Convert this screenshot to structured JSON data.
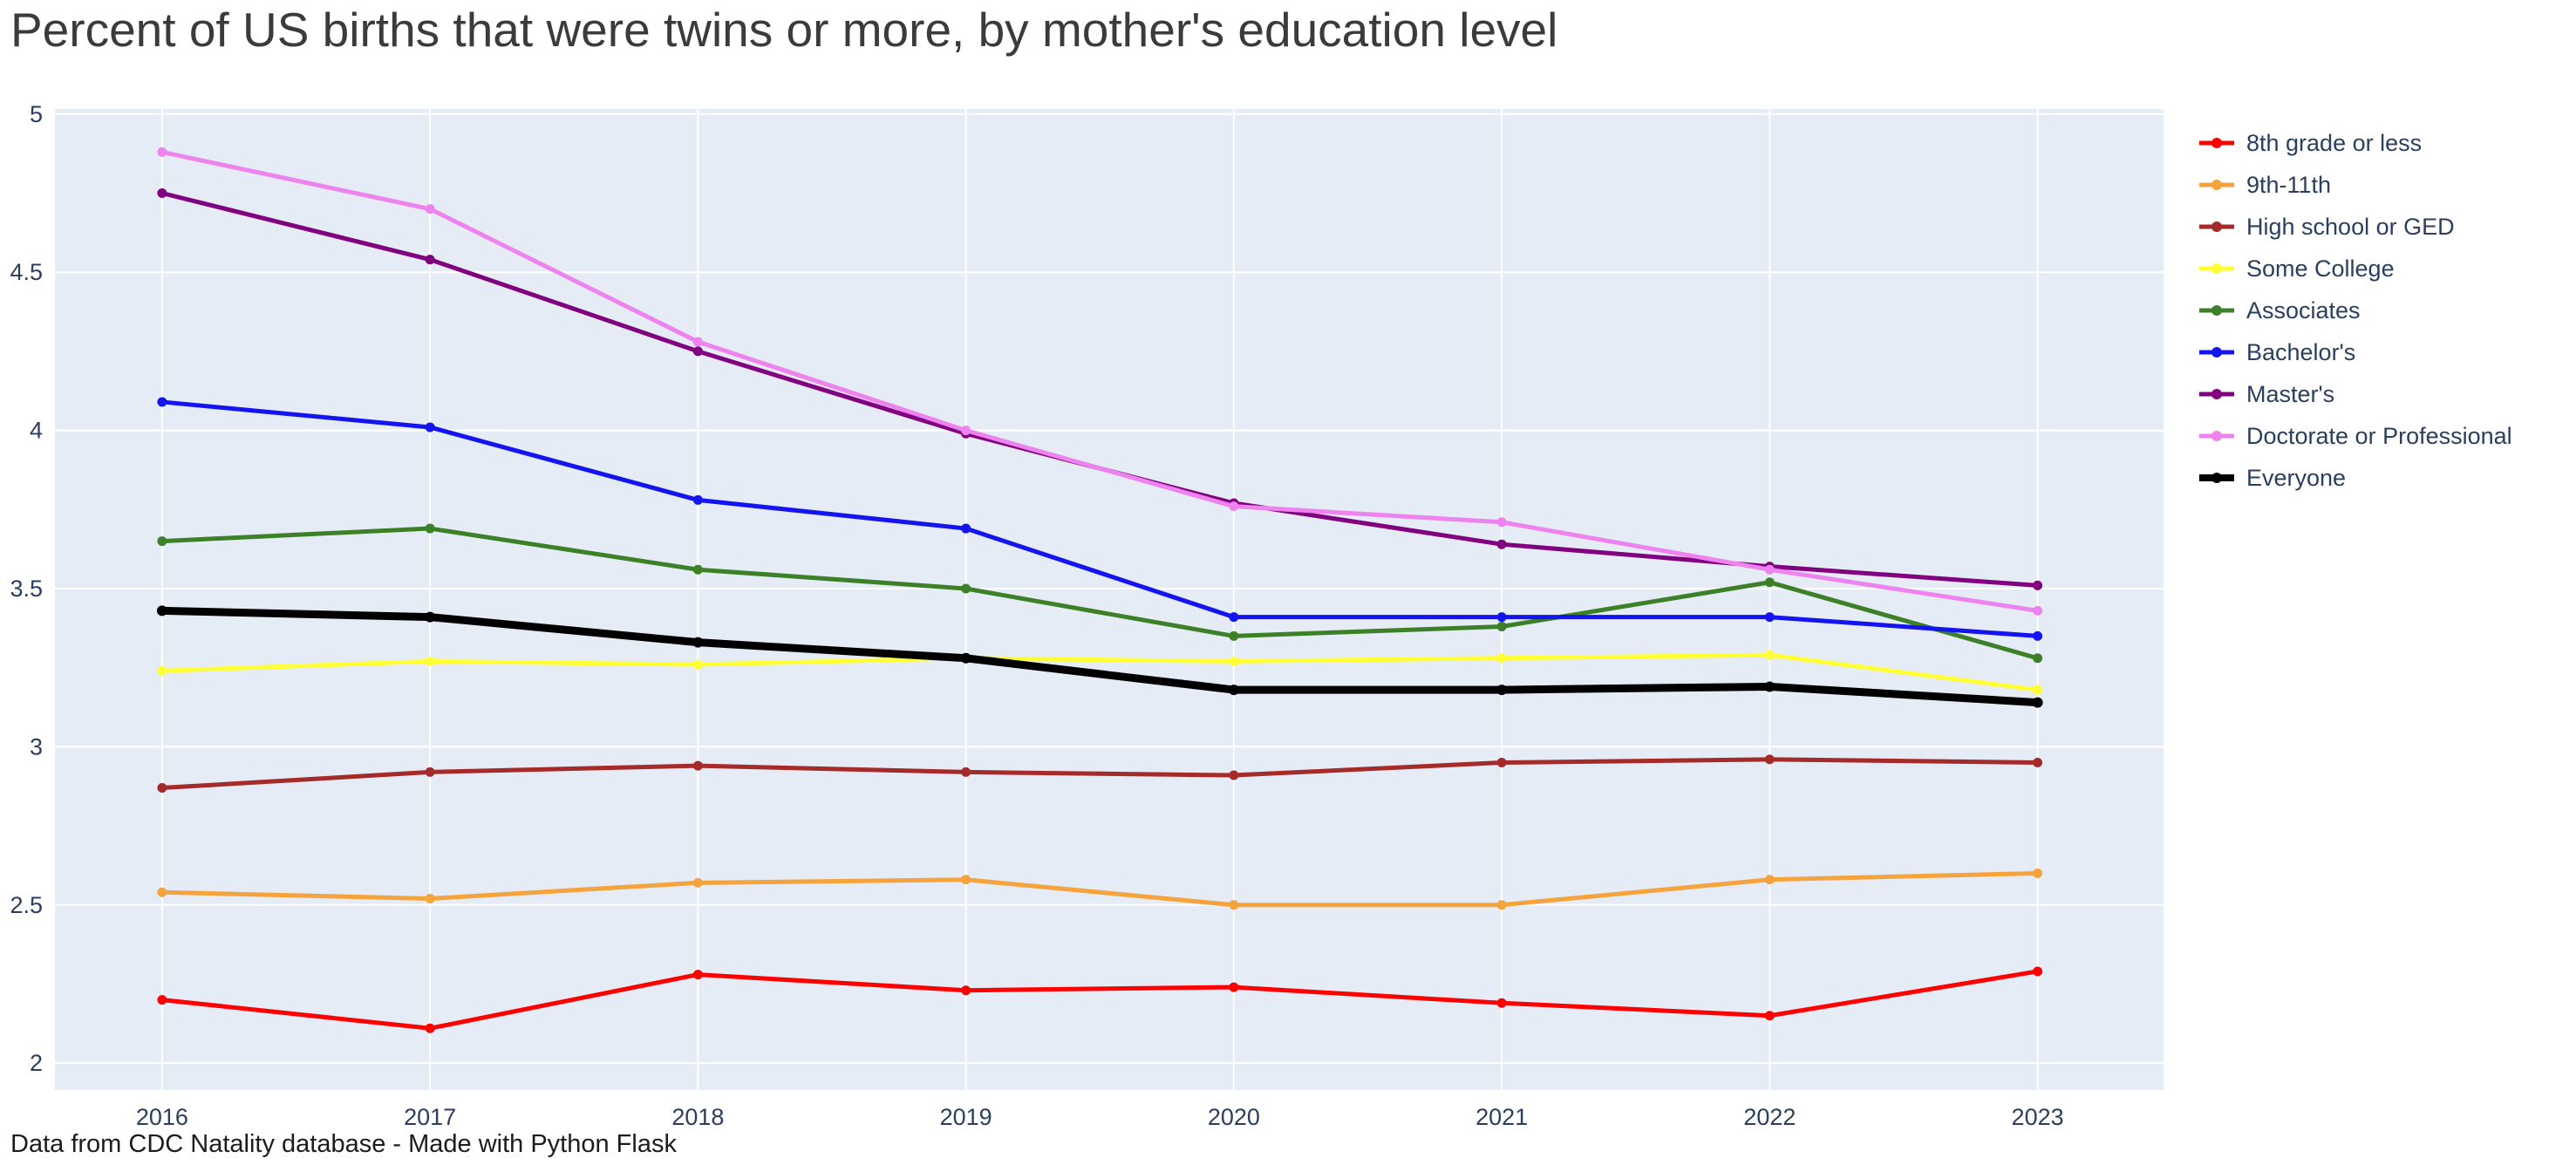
{
  "page": {
    "title": "Percent of US births that were twins or more, by mother's education level",
    "caption": "Data from CDC Natality database - Made with Python Flask"
  },
  "chart_data": {
    "type": "line",
    "title": "Percent of US births that were twins or more, by mother's education level",
    "xlabel": "",
    "ylabel": "",
    "x": [
      2016,
      2017,
      2018,
      2019,
      2020,
      2021,
      2022,
      2023
    ],
    "yticks": [
      2,
      2.5,
      3,
      3.5,
      4,
      4.5,
      5
    ],
    "ylim": [
      1.9,
      5.02
    ],
    "grid": true,
    "legend_position": "right",
    "plot_bg": "#e5ecf6",
    "grid_color": "#ffffff",
    "tick_color": "#2a3f5f",
    "series": [
      {
        "name": "8th grade or less",
        "color": "#ff0000",
        "width": 5,
        "values": [
          2.2,
          2.11,
          2.28,
          2.23,
          2.24,
          2.19,
          2.15,
          2.29
        ]
      },
      {
        "name": "9th-11th",
        "color": "#f5a33c",
        "width": 5,
        "values": [
          2.54,
          2.52,
          2.57,
          2.58,
          2.5,
          2.5,
          2.58,
          2.6
        ]
      },
      {
        "name": "High school or GED",
        "color": "#a52a2a",
        "width": 5,
        "values": [
          2.87,
          2.92,
          2.94,
          2.92,
          2.91,
          2.95,
          2.96,
          2.95
        ]
      },
      {
        "name": "Some College",
        "color": "#ffff33",
        "width": 5,
        "values": [
          3.24,
          3.27,
          3.26,
          3.28,
          3.27,
          3.28,
          3.29,
          3.18
        ]
      },
      {
        "name": "Associates",
        "color": "#3c8028",
        "width": 5,
        "values": [
          3.65,
          3.69,
          3.56,
          3.5,
          3.35,
          3.38,
          3.52,
          3.28
        ]
      },
      {
        "name": "Bachelor's",
        "color": "#1414f0",
        "width": 5,
        "values": [
          4.09,
          4.01,
          3.78,
          3.69,
          3.41,
          3.41,
          3.41,
          3.35
        ]
      },
      {
        "name": "Master's",
        "color": "#800080",
        "width": 5,
        "values": [
          4.75,
          4.54,
          4.25,
          3.99,
          3.77,
          3.64,
          3.57,
          3.51
        ]
      },
      {
        "name": "Doctorate or Professional",
        "color": "#ee82ee",
        "width": 5,
        "values": [
          4.88,
          4.7,
          4.28,
          4.0,
          3.76,
          3.71,
          3.56,
          3.43
        ]
      },
      {
        "name": "Everyone",
        "color": "#000000",
        "width": 9,
        "values": [
          3.43,
          3.41,
          3.33,
          3.28,
          3.18,
          3.18,
          3.19,
          3.14
        ]
      }
    ]
  }
}
